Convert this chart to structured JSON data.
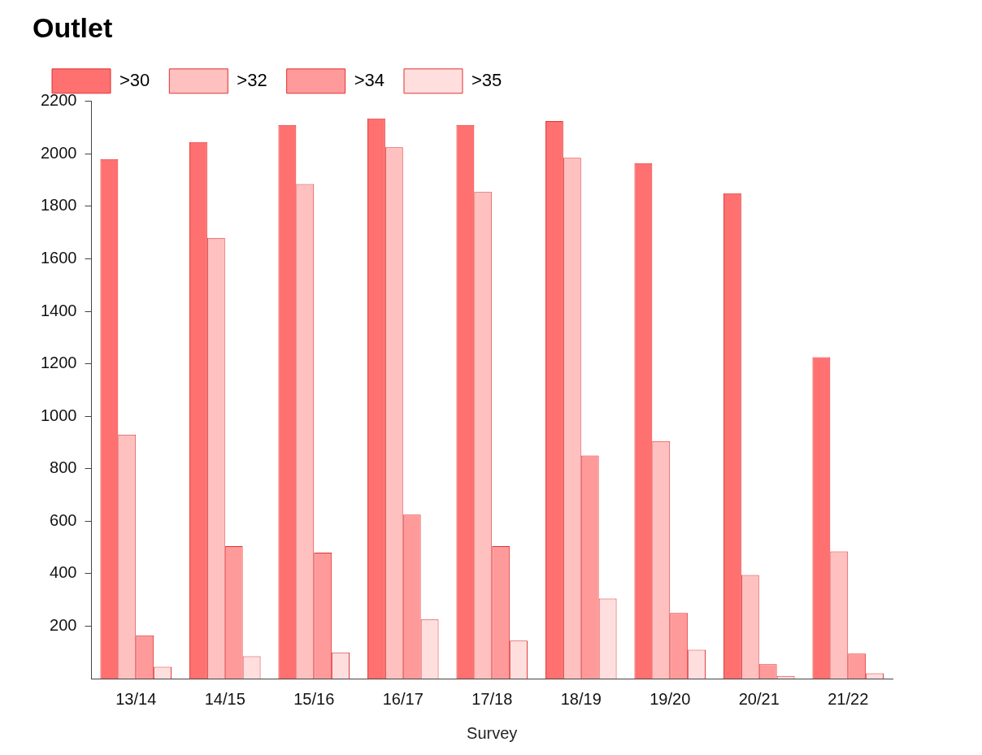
{
  "chart_data": {
    "type": "bar",
    "title": "Outlet",
    "xlabel": "Survey",
    "categories": [
      "13/14",
      "14/15",
      "15/16",
      "16/17",
      "17/18",
      "18/19",
      "19/20",
      "20/21",
      "21/22"
    ],
    "series": [
      {
        "name": ">30",
        "color": "#ff7070",
        "values": [
          1980,
          2045,
          2110,
          2135,
          2110,
          2125,
          1965,
          1850,
          1225
        ]
      },
      {
        "name": ">32",
        "color": "#ffc0c0",
        "values": [
          930,
          1680,
          1885,
          2025,
          1855,
          1985,
          905,
          395,
          485
        ]
      },
      {
        "name": ">34",
        "color": "#ff9a9a",
        "values": [
          165,
          505,
          480,
          625,
          505,
          850,
          250,
          55,
          95
        ]
      },
      {
        "name": ">35",
        "color": "#ffdede",
        "values": [
          45,
          85,
          100,
          225,
          145,
          305,
          110,
          10,
          20
        ]
      }
    ],
    "ylim": [
      0,
      2200
    ],
    "yticks": [
      200,
      400,
      600,
      800,
      1000,
      1200,
      1400,
      1600,
      1800,
      2000,
      2200
    ],
    "grid": false,
    "legend": "top left"
  }
}
